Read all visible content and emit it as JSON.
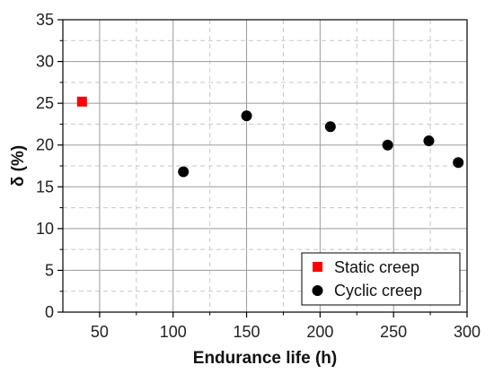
{
  "chart_data": {
    "type": "scatter",
    "xlabel": "Endurance life (h)",
    "ylabel": "δ (%)",
    "xlim": [
      25,
      300
    ],
    "ylim": [
      0,
      35
    ],
    "xticks": [
      50,
      100,
      150,
      200,
      250,
      300
    ],
    "yticks": [
      0,
      5,
      10,
      15,
      20,
      25,
      30,
      35
    ],
    "grid": true,
    "legend_position": "bottom-right",
    "series": [
      {
        "name": "Static creep",
        "marker": "square",
        "color": "#ff0000",
        "points": [
          {
            "x": 38,
            "y": 25.2
          }
        ]
      },
      {
        "name": "Cyclic creep",
        "marker": "circle",
        "color": "#000000",
        "points": [
          {
            "x": 107,
            "y": 16.8
          },
          {
            "x": 150,
            "y": 23.5
          },
          {
            "x": 207,
            "y": 22.2
          },
          {
            "x": 246,
            "y": 20.0
          },
          {
            "x": 274,
            "y": 20.5
          },
          {
            "x": 294,
            "y": 17.9
          }
        ]
      }
    ]
  }
}
